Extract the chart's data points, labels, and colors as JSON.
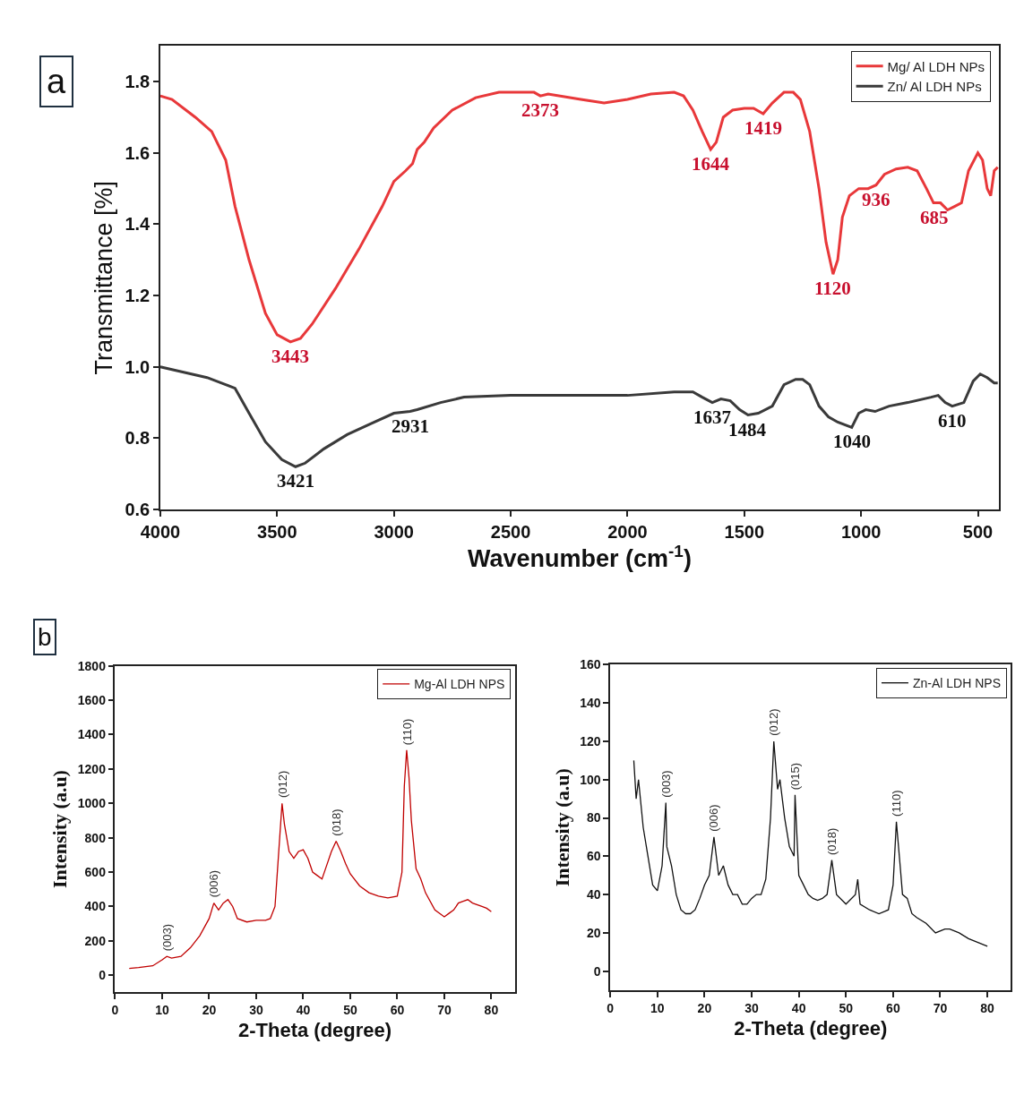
{
  "chart_data": [
    {
      "type": "line",
      "xlabel": "Wavenumber (cm$^{-1}$)",
      "ylabel": "Transmittance [%]",
      "xlim": [
        4000,
        410
      ],
      "ylim": [
        0.6,
        1.9
      ],
      "xticks": [
        4000,
        3500,
        3000,
        2500,
        2000,
        1500,
        1000,
        500
      ],
      "yticks": [
        0.6,
        0.8,
        {
          "value": 1,
          "label": "1.0"
        },
        1.2,
        1.4,
        1.6,
        1.8
      ],
      "legend": "top right",
      "marker": "none",
      "line_style": "solid",
      "series": [
        {
          "name": "Mg/ Al LDH NPs",
          "color": "#e8383a",
          "x": [
            4000,
            3950,
            3850,
            3780,
            3720,
            3680,
            3620,
            3550,
            3500,
            3443,
            3400,
            3350,
            3250,
            3150,
            3050,
            3000,
            2950,
            2920,
            2900,
            2870,
            2830,
            2750,
            2650,
            2550,
            2400,
            2373,
            2340,
            2200,
            2100,
            2000,
            1900,
            1800,
            1760,
            1720,
            1680,
            1644,
            1620,
            1590,
            1550,
            1500,
            1460,
            1419,
            1380,
            1330,
            1290,
            1260,
            1220,
            1180,
            1150,
            1120,
            1100,
            1080,
            1050,
            1010,
            970,
            936,
            900,
            850,
            800,
            760,
            720,
            690,
            685,
            660,
            630,
            600,
            570,
            540,
            500,
            480,
            460,
            445,
            430,
            415
          ],
          "values": [
            1.76,
            1.75,
            1.7,
            1.66,
            1.58,
            1.45,
            1.3,
            1.15,
            1.09,
            1.07,
            1.08,
            1.12,
            1.22,
            1.33,
            1.45,
            1.52,
            1.55,
            1.57,
            1.61,
            1.63,
            1.67,
            1.72,
            1.755,
            1.77,
            1.77,
            1.76,
            1.765,
            1.75,
            1.74,
            1.75,
            1.765,
            1.77,
            1.76,
            1.72,
            1.66,
            1.61,
            1.63,
            1.7,
            1.72,
            1.725,
            1.725,
            1.71,
            1.74,
            1.77,
            1.77,
            1.75,
            1.66,
            1.5,
            1.35,
            1.26,
            1.3,
            1.42,
            1.48,
            1.5,
            1.5,
            1.51,
            1.54,
            1.555,
            1.56,
            1.55,
            1.5,
            1.46,
            1.46,
            1.46,
            1.44,
            1.45,
            1.46,
            1.55,
            1.6,
            1.58,
            1.5,
            1.48,
            1.55,
            1.56
          ]
        },
        {
          "name": "Zn/ Al LDH NPs",
          "color": "#3a3a3a",
          "x": [
            4000,
            3900,
            3800,
            3720,
            3680,
            3620,
            3550,
            3480,
            3421,
            3380,
            3300,
            3200,
            3100,
            3000,
            2931,
            2900,
            2800,
            2700,
            2500,
            2373,
            2300,
            2000,
            1800,
            1720,
            1680,
            1637,
            1600,
            1560,
            1520,
            1484,
            1440,
            1380,
            1330,
            1280,
            1250,
            1220,
            1180,
            1140,
            1100,
            1040,
            1010,
            980,
            940,
            880,
            800,
            700,
            670,
            640,
            610,
            560,
            520,
            490,
            460,
            430,
            415
          ],
          "values": [
            1.0,
            0.985,
            0.97,
            0.95,
            0.94,
            0.87,
            0.79,
            0.74,
            0.72,
            0.73,
            0.77,
            0.81,
            0.84,
            0.87,
            0.875,
            0.88,
            0.9,
            0.915,
            0.92,
            0.92,
            0.92,
            0.92,
            0.93,
            0.93,
            0.915,
            0.9,
            0.91,
            0.905,
            0.88,
            0.865,
            0.87,
            0.89,
            0.95,
            0.965,
            0.965,
            0.95,
            0.89,
            0.86,
            0.845,
            0.83,
            0.87,
            0.88,
            0.875,
            0.89,
            0.9,
            0.915,
            0.92,
            0.9,
            0.89,
            0.9,
            0.96,
            0.98,
            0.97,
            0.955,
            0.955
          ]
        }
      ],
      "annotations": [
        "a",
        {
          "text": "3443",
          "x": 3443,
          "y": 1.07
        },
        {
          "text": "2373",
          "x": 2373,
          "y": 1.76
        },
        {
          "text": "1644",
          "x": 1644,
          "y": 1.61
        },
        {
          "text": "1419",
          "x": 1419,
          "y": 1.71
        },
        {
          "text": "1120",
          "x": 1120,
          "y": 1.26
        },
        {
          "text": "936",
          "x": 936,
          "y": 1.51
        },
        {
          "text": "685",
          "x": 685,
          "y": 1.46
        },
        {
          "text": "3421",
          "x": 3421,
          "y": 0.72
        },
        {
          "text": "2931",
          "x": 2931,
          "y": 0.875
        },
        {
          "text": "1637",
          "x": 1637,
          "y": 0.9
        },
        {
          "text": "1484",
          "x": 1484,
          "y": 0.865
        },
        {
          "text": "1040",
          "x": 1040,
          "y": 0.83
        },
        {
          "text": "610",
          "x": 610,
          "y": 0.89
        }
      ]
    },
    {
      "type": "line",
      "xlabel": "2-Theta (degree)",
      "ylabel": "Intensity (a.u)",
      "xlim": [
        0,
        85
      ],
      "ylim": [
        -100,
        1800
      ],
      "xticks": [
        0,
        10,
        20,
        30,
        40,
        50,
        60,
        70,
        80
      ],
      "yticks": [
        0,
        200,
        400,
        600,
        800,
        1000,
        1200,
        1400,
        1600,
        1800
      ],
      "legend": "top right",
      "marker": "none",
      "line_style": "solid",
      "series": [
        {
          "name": "Mg-Al LDH NPS",
          "color": "#c00000",
          "x": [
            3,
            5,
            8,
            10,
            11,
            12,
            14,
            16,
            18,
            20,
            21,
            22,
            23,
            24,
            25,
            26,
            28,
            30,
            32,
            33,
            34,
            35,
            35.5,
            36,
            37,
            38,
            39,
            40,
            41,
            42,
            43,
            44,
            45,
            46,
            47,
            48,
            49,
            50,
            52,
            54,
            56,
            58,
            60,
            61,
            61.5,
            62,
            62.5,
            63,
            64,
            65,
            66,
            68,
            70,
            71,
            72,
            73,
            74,
            75,
            76,
            78,
            79,
            80
          ],
          "values": [
            40,
            45,
            55,
            90,
            110,
            100,
            110,
            160,
            230,
            330,
            420,
            380,
            420,
            440,
            400,
            330,
            310,
            320,
            320,
            330,
            400,
            800,
            1000,
            880,
            720,
            680,
            720,
            730,
            680,
            600,
            580,
            560,
            640,
            720,
            780,
            720,
            650,
            590,
            520,
            480,
            460,
            450,
            460,
            600,
            1100,
            1310,
            1150,
            900,
            620,
            560,
            480,
            380,
            340,
            360,
            380,
            420,
            430,
            440,
            420,
            400,
            390,
            370
          ]
        }
      ],
      "annotations": [
        "b",
        {
          "text": "(003)",
          "x": 11,
          "y": 110
        },
        {
          "text": "(006)",
          "x": 21,
          "y": 420
        },
        {
          "text": "(012)",
          "x": 35.5,
          "y": 1000
        },
        {
          "text": "(018)",
          "x": 47,
          "y": 780
        },
        {
          "text": "(110)",
          "x": 62,
          "y": 1310
        }
      ]
    },
    {
      "type": "line",
      "xlabel": "2-Theta (degree)",
      "ylabel": "Intensity (a.u)",
      "xlim": [
        0,
        85
      ],
      "ylim": [
        -10,
        160
      ],
      "xticks": [
        0,
        10,
        20,
        30,
        40,
        50,
        60,
        70,
        80
      ],
      "yticks": [
        0,
        20,
        40,
        60,
        80,
        100,
        120,
        140,
        160
      ],
      "legend": "top right",
      "marker": "none",
      "line_style": "solid",
      "series": [
        {
          "name": "Zn-Al LDH NPS",
          "color": "#111111",
          "x": [
            5,
            5.5,
            6,
            7,
            8,
            9,
            10,
            11,
            11.8,
            12,
            13,
            14,
            15,
            16,
            17,
            18,
            19,
            20,
            21,
            22,
            23,
            24,
            25,
            26,
            27,
            28,
            29,
            30,
            31,
            32,
            33,
            34,
            34.7,
            35.5,
            36,
            37,
            38,
            39,
            39.2,
            40,
            41,
            42,
            43,
            44,
            45,
            46,
            47,
            48,
            50,
            52,
            52.5,
            53,
            55,
            57,
            59,
            60,
            60.7,
            61.5,
            62,
            63,
            64,
            65,
            67,
            69,
            71,
            72,
            74,
            76,
            78,
            80
          ],
          "values": [
            110,
            90,
            100,
            75,
            60,
            45,
            42,
            55,
            88,
            65,
            55,
            40,
            32,
            30,
            30,
            32,
            38,
            45,
            50,
            70,
            50,
            55,
            45,
            40,
            40,
            35,
            35,
            38,
            40,
            40,
            48,
            80,
            120,
            95,
            100,
            80,
            65,
            60,
            92,
            50,
            45,
            40,
            38,
            37,
            38,
            40,
            58,
            40,
            35,
            40,
            48,
            35,
            32,
            30,
            32,
            45,
            78,
            55,
            40,
            38,
            30,
            28,
            25,
            20,
            22,
            22,
            20,
            17,
            15,
            13
          ]
        }
      ],
      "annotations": [
        {
          "text": "(003)",
          "x": 11.8,
          "y": 88
        },
        {
          "text": "(006)",
          "x": 22,
          "y": 70
        },
        {
          "text": "(012)",
          "x": 34.7,
          "y": 120
        },
        {
          "text": "(015)",
          "x": 39.2,
          "y": 92
        },
        {
          "text": "(018)",
          "x": 47,
          "y": 58
        },
        {
          "text": "(110)",
          "x": 60.7,
          "y": 78
        }
      ]
    }
  ]
}
